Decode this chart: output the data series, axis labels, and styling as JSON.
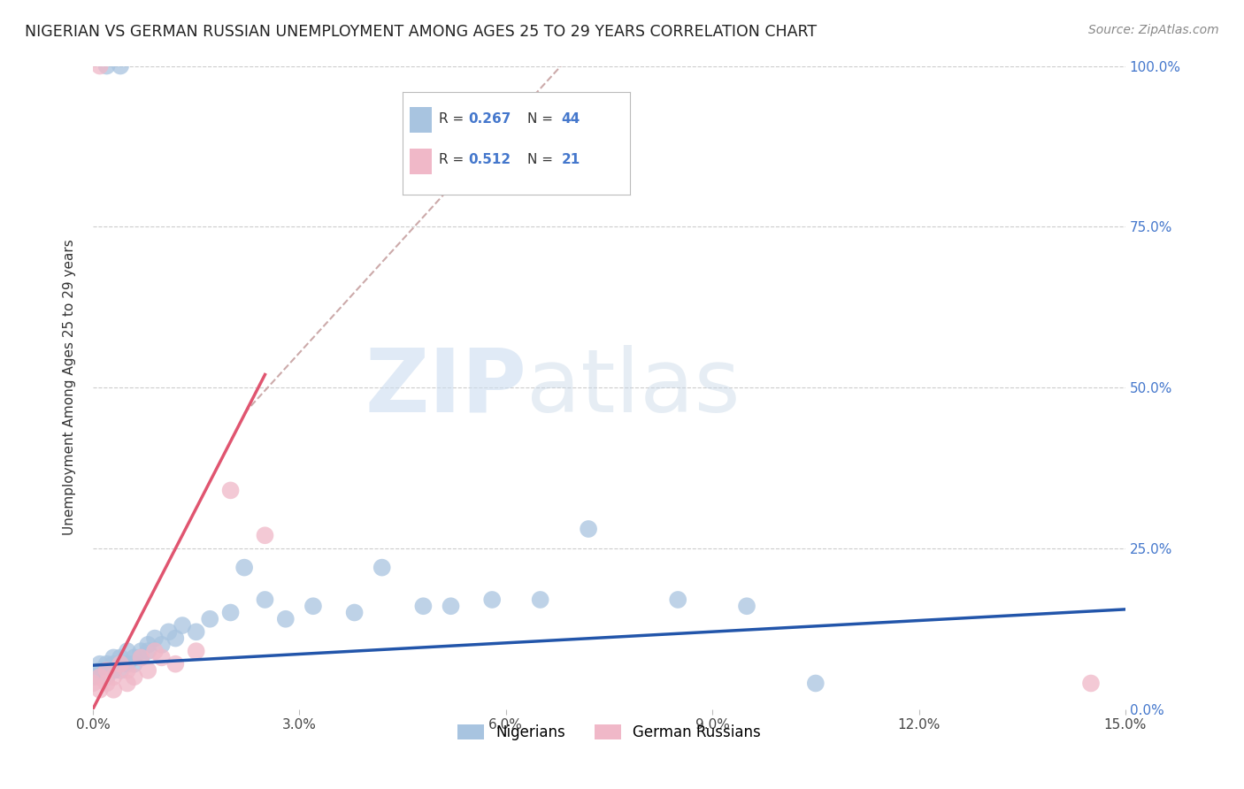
{
  "title": "NIGERIAN VS GERMAN RUSSIAN UNEMPLOYMENT AMONG AGES 25 TO 29 YEARS CORRELATION CHART",
  "source": "Source: ZipAtlas.com",
  "ylabel": "Unemployment Among Ages 25 to 29 years",
  "xlim": [
    0.0,
    0.15
  ],
  "ylim": [
    0.0,
    1.0
  ],
  "xtick_vals": [
    0.0,
    0.03,
    0.06,
    0.09,
    0.12,
    0.15
  ],
  "xticklabels": [
    "0.0%",
    "3.0%",
    "6.0%",
    "9.0%",
    "12.0%",
    "15.0%"
  ],
  "yticks": [
    0.0,
    0.25,
    0.5,
    0.75,
    1.0
  ],
  "yticklabels_right": [
    "0.0%",
    "25.0%",
    "50.0%",
    "75.0%",
    "100.0%"
  ],
  "nigerian_color": "#a8c4e0",
  "german_russian_color": "#f0b8c8",
  "nigerian_line_color": "#2255aa",
  "german_russian_line_color": "#e05570",
  "r_nigerian": 0.267,
  "n_nigerian": 44,
  "r_german": 0.512,
  "n_german": 21,
  "watermark_zip": "ZIP",
  "watermark_atlas": "atlas",
  "background_color": "#ffffff",
  "grid_color": "#cccccc",
  "nig_x": [
    0.0,
    0.001,
    0.001,
    0.002,
    0.002,
    0.002,
    0.003,
    0.003,
    0.003,
    0.004,
    0.004,
    0.004,
    0.005,
    0.005,
    0.006,
    0.006,
    0.007,
    0.007,
    0.008,
    0.008,
    0.009,
    0.01,
    0.011,
    0.012,
    0.013,
    0.015,
    0.017,
    0.02,
    0.022,
    0.025,
    0.028,
    0.032,
    0.038,
    0.042,
    0.048,
    0.052,
    0.058,
    0.065,
    0.072,
    0.085,
    0.095,
    0.105,
    0.002,
    0.004
  ],
  "nig_y": [
    0.05,
    0.06,
    0.07,
    0.05,
    0.07,
    0.06,
    0.07,
    0.08,
    0.06,
    0.07,
    0.06,
    0.08,
    0.07,
    0.09,
    0.08,
    0.07,
    0.09,
    0.08,
    0.1,
    0.09,
    0.11,
    0.1,
    0.12,
    0.11,
    0.13,
    0.12,
    0.14,
    0.15,
    0.22,
    0.17,
    0.14,
    0.16,
    0.15,
    0.22,
    0.16,
    0.16,
    0.17,
    0.17,
    0.28,
    0.17,
    0.16,
    0.04,
    1.0,
    1.0
  ],
  "ger_x": [
    0.0,
    0.001,
    0.001,
    0.002,
    0.002,
    0.003,
    0.003,
    0.004,
    0.005,
    0.005,
    0.006,
    0.007,
    0.008,
    0.009,
    0.01,
    0.012,
    0.015,
    0.02,
    0.025,
    0.001,
    0.145
  ],
  "ger_y": [
    0.04,
    0.03,
    0.05,
    0.04,
    0.06,
    0.05,
    0.03,
    0.07,
    0.06,
    0.04,
    0.05,
    0.08,
    0.06,
    0.09,
    0.08,
    0.07,
    0.09,
    0.34,
    0.27,
    1.0,
    0.04
  ],
  "nig_trend_x0": 0.0,
  "nig_trend_y0": 0.068,
  "nig_trend_x1": 0.15,
  "nig_trend_y1": 0.155,
  "ger_trend_solid_x0": 0.0,
  "ger_trend_solid_y0": 0.0,
  "ger_trend_solid_x1": 0.025,
  "ger_trend_solid_y1": 0.52,
  "ger_trend_dashed_x0": 0.022,
  "ger_trend_dashed_y0": 0.46,
  "ger_trend_dashed_x1": 0.068,
  "ger_trend_dashed_y1": 1.0
}
